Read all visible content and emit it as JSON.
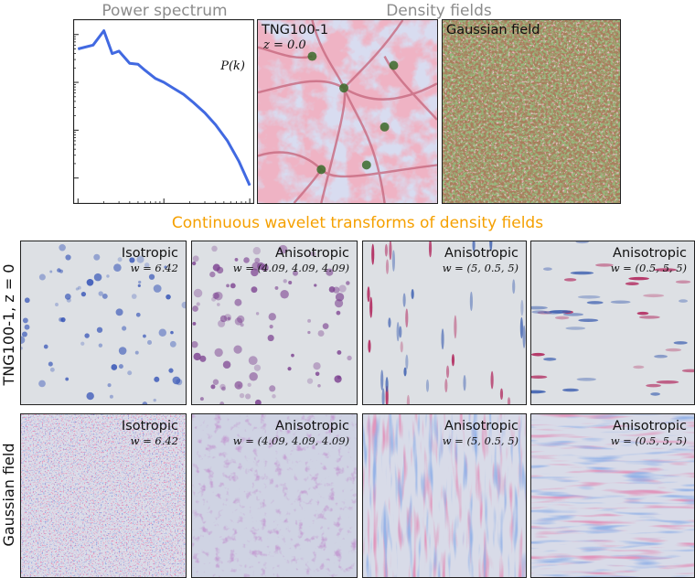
{
  "headers": {
    "power_spectrum": "Power spectrum",
    "density_fields": "Density fields",
    "wavelet_title": "Continuous wavelet transforms of density fields"
  },
  "power_panel": {
    "ylabel_inset": "P(k)"
  },
  "density_panels": {
    "tng_label": "TNG100-1",
    "tng_redshift": "z = 0.0",
    "gauss_label": "Gaussian field"
  },
  "row_labels": {
    "row1": "TNG100-1, z = 0",
    "row2": "Gaussian field"
  },
  "wavelets": [
    {
      "name": "Isotropic",
      "param": "w = 6.42"
    },
    {
      "name": "Anisotropic",
      "param": "w = (4.09, 4.09, 4.09)"
    },
    {
      "name": "Anisotropic",
      "param": "w = (5, 0.5, 5)"
    },
    {
      "name": "Anisotropic",
      "param": "w = (0.5, 5, 5)"
    }
  ],
  "chart_data": {
    "type": "line",
    "title": "Power spectrum",
    "xlabel": "",
    "ylabel": "P(k)",
    "x_scale": "log",
    "y_scale": "log",
    "x": [
      1,
      1.5,
      2,
      2.5,
      3,
      4,
      5,
      6,
      8,
      10,
      13,
      17,
      22,
      30,
      40,
      55,
      75,
      100
    ],
    "values": [
      50000,
      60000,
      120000,
      40000,
      45000,
      25000,
      24000,
      18000,
      12000,
      10000,
      7500,
      5600,
      3800,
      2300,
      1300,
      600,
      220,
      70
    ],
    "xlim": [
      0.9,
      110
    ],
    "ylim": [
      30,
      200000
    ],
    "color": "#4169e1",
    "grid": false
  },
  "colors": {
    "curve": "#4169e1",
    "wavelet_title": "#f5a000",
    "header_gray": "#8c8c8c"
  }
}
